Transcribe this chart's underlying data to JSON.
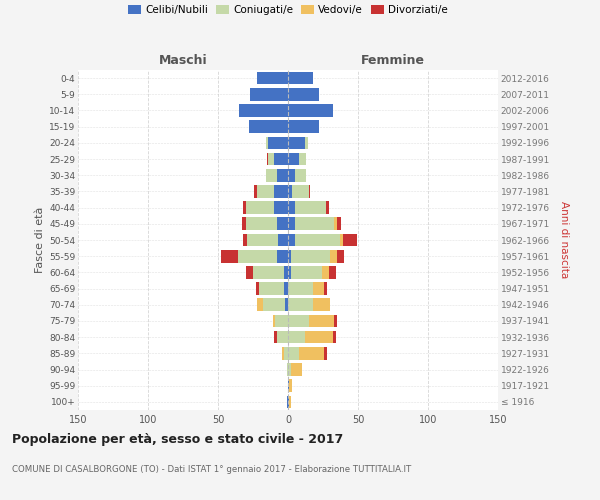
{
  "age_groups": [
    "100+",
    "95-99",
    "90-94",
    "85-89",
    "80-84",
    "75-79",
    "70-74",
    "65-69",
    "60-64",
    "55-59",
    "50-54",
    "45-49",
    "40-44",
    "35-39",
    "30-34",
    "25-29",
    "20-24",
    "15-19",
    "10-14",
    "5-9",
    "0-4"
  ],
  "birth_years": [
    "≤ 1916",
    "1917-1921",
    "1922-1926",
    "1927-1931",
    "1932-1936",
    "1937-1941",
    "1942-1946",
    "1947-1951",
    "1952-1956",
    "1957-1961",
    "1962-1966",
    "1967-1971",
    "1972-1976",
    "1977-1981",
    "1982-1986",
    "1987-1991",
    "1992-1996",
    "1997-2001",
    "2002-2006",
    "2007-2011",
    "2012-2016"
  ],
  "maschi": {
    "celibi": [
      1,
      0,
      0,
      0,
      0,
      0,
      2,
      3,
      3,
      8,
      7,
      8,
      10,
      10,
      8,
      10,
      14,
      28,
      35,
      27,
      22
    ],
    "coniugati": [
      0,
      0,
      1,
      3,
      8,
      9,
      16,
      18,
      22,
      28,
      22,
      22,
      20,
      12,
      8,
      4,
      2,
      0,
      0,
      0,
      0
    ],
    "vedovi": [
      0,
      0,
      0,
      1,
      0,
      2,
      4,
      0,
      0,
      0,
      0,
      0,
      0,
      0,
      0,
      0,
      0,
      0,
      0,
      0,
      0
    ],
    "divorziati": [
      0,
      0,
      0,
      0,
      2,
      0,
      0,
      2,
      5,
      12,
      3,
      3,
      2,
      2,
      0,
      1,
      0,
      0,
      0,
      0,
      0
    ]
  },
  "femmine": {
    "nubili": [
      1,
      1,
      0,
      0,
      0,
      0,
      0,
      0,
      2,
      2,
      5,
      5,
      5,
      3,
      5,
      8,
      12,
      22,
      32,
      22,
      18
    ],
    "coniugate": [
      0,
      0,
      2,
      8,
      12,
      15,
      18,
      18,
      22,
      28,
      32,
      28,
      22,
      12,
      8,
      5,
      2,
      0,
      0,
      0,
      0
    ],
    "vedove": [
      1,
      2,
      8,
      18,
      20,
      18,
      12,
      8,
      5,
      5,
      2,
      2,
      0,
      0,
      0,
      0,
      0,
      0,
      0,
      0,
      0
    ],
    "divorziate": [
      0,
      0,
      0,
      2,
      2,
      2,
      0,
      2,
      5,
      5,
      10,
      3,
      2,
      1,
      0,
      0,
      0,
      0,
      0,
      0,
      0
    ]
  },
  "colors": {
    "celibi": "#4472c4",
    "coniugati": "#c5d9a8",
    "vedovi": "#f0c060",
    "divorziati": "#c83232"
  },
  "xlim": 150,
  "title": "Popolazione per età, sesso e stato civile - 2017",
  "subtitle": "COMUNE DI CASALBORGONE (TO) - Dati ISTAT 1° gennaio 2017 - Elaborazione TUTTITALIA.IT",
  "ylabel_left": "Fasce di età",
  "ylabel_right": "Anni di nascita",
  "xlabel_maschi": "Maschi",
  "xlabel_femmine": "Femmine",
  "legend_labels": [
    "Celibi/Nubili",
    "Coniugati/e",
    "Vedovi/e",
    "Divorziati/e"
  ],
  "bg_color": "#f4f4f4",
  "plot_bg": "#ffffff",
  "grid_color": "#cccccc"
}
